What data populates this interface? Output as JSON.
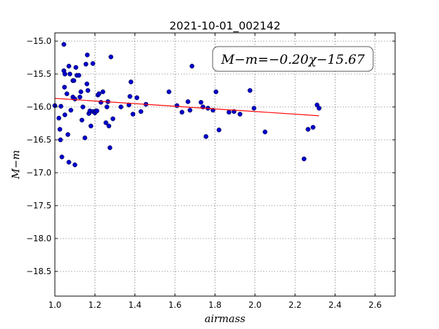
{
  "chart_data": {
    "type": "scatter",
    "title": "2021-10-01_002142",
    "xlabel": "airmass",
    "ylabel": "M−m",
    "xlim": [
      1.0,
      2.7
    ],
    "ylim": [
      -18.875,
      -14.875
    ],
    "y_inverted": true,
    "grid": true,
    "x_ticks": [
      1.0,
      1.2,
      1.4,
      1.6,
      1.8,
      2.0,
      2.2,
      2.4,
      2.6
    ],
    "x_tick_labels": [
      "1.0",
      "1.2",
      "1.4",
      "1.6",
      "1.8",
      "2.0",
      "2.2",
      "2.4",
      "2.6"
    ],
    "y_ticks": [
      -15.0,
      -15.5,
      -16.0,
      -16.5,
      -17.0,
      -17.5,
      -18.0,
      -18.5
    ],
    "y_tick_labels": [
      "−15.0",
      "−15.5",
      "−16.0",
      "−16.5",
      "−17.0",
      "−17.5",
      "−18.0",
      "−18.5"
    ],
    "annotation": "M−m=−0.20χ−15.67",
    "annotation_placement": "top-right",
    "marker_color": "#0000cc",
    "fit_color": "#ff0000",
    "fit": {
      "slope": -0.2,
      "intercept": -15.67,
      "x_range": [
        1.0,
        2.32
      ]
    },
    "series": [
      {
        "points": [
          [
            1.0,
            -15.98
          ],
          [
            1.02,
            -16.17
          ],
          [
            1.025,
            -16.34
          ],
          [
            1.028,
            -16.5
          ],
          [
            1.03,
            -15.99
          ],
          [
            1.035,
            -16.76
          ],
          [
            1.045,
            -15.05
          ],
          [
            1.045,
            -15.45
          ],
          [
            1.048,
            -15.7
          ],
          [
            1.05,
            -15.5
          ],
          [
            1.05,
            -16.12
          ],
          [
            1.06,
            -15.8
          ],
          [
            1.065,
            -16.42
          ],
          [
            1.07,
            -15.38
          ],
          [
            1.07,
            -16.84
          ],
          [
            1.075,
            -15.5
          ],
          [
            1.08,
            -16.05
          ],
          [
            1.09,
            -15.6
          ],
          [
            1.09,
            -15.85
          ],
          [
            1.095,
            -15.6
          ],
          [
            1.1,
            -15.88
          ],
          [
            1.1,
            -16.88
          ],
          [
            1.105,
            -15.4
          ],
          [
            1.11,
            -15.52
          ],
          [
            1.12,
            -15.52
          ],
          [
            1.125,
            -15.85
          ],
          [
            1.13,
            -15.77
          ],
          [
            1.135,
            -16.2
          ],
          [
            1.14,
            -16.0
          ],
          [
            1.15,
            -16.47
          ],
          [
            1.155,
            -15.35
          ],
          [
            1.16,
            -15.65
          ],
          [
            1.162,
            -15.21
          ],
          [
            1.165,
            -15.75
          ],
          [
            1.17,
            -16.1
          ],
          [
            1.175,
            -16.06
          ],
          [
            1.18,
            -16.29
          ],
          [
            1.19,
            -15.34
          ],
          [
            1.19,
            -16.07
          ],
          [
            1.2,
            -16.09
          ],
          [
            1.205,
            -16.06
          ],
          [
            1.21,
            -16.06
          ],
          [
            1.215,
            -15.82
          ],
          [
            1.22,
            -15.8
          ],
          [
            1.23,
            -15.93
          ],
          [
            1.24,
            -15.77
          ],
          [
            1.255,
            -16.24
          ],
          [
            1.26,
            -16.0
          ],
          [
            1.265,
            -15.92
          ],
          [
            1.27,
            -16.29
          ],
          [
            1.275,
            -16.62
          ],
          [
            1.28,
            -15.24
          ],
          [
            1.29,
            -16.18
          ],
          [
            1.33,
            -16.0
          ],
          [
            1.37,
            -15.97
          ],
          [
            1.375,
            -15.84
          ],
          [
            1.38,
            -15.62
          ],
          [
            1.39,
            -16.11
          ],
          [
            1.41,
            -15.86
          ],
          [
            1.43,
            -16.07
          ],
          [
            1.455,
            -15.96
          ],
          [
            1.57,
            -15.77
          ],
          [
            1.61,
            -15.98
          ],
          [
            1.635,
            -16.08
          ],
          [
            1.665,
            -15.92
          ],
          [
            1.675,
            -16.05
          ],
          [
            1.685,
            -15.38
          ],
          [
            1.73,
            -15.93
          ],
          [
            1.74,
            -16.0
          ],
          [
            1.755,
            -16.45
          ],
          [
            1.765,
            -16.02
          ],
          [
            1.79,
            -16.05
          ],
          [
            1.805,
            -15.77
          ],
          [
            1.82,
            -16.35
          ],
          [
            1.87,
            -16.08
          ],
          [
            1.895,
            -16.07
          ],
          [
            1.925,
            -16.11
          ],
          [
            1.975,
            -15.75
          ],
          [
            1.995,
            -16.02
          ],
          [
            2.05,
            -16.38
          ],
          [
            2.245,
            -16.79
          ],
          [
            2.265,
            -16.34
          ],
          [
            2.29,
            -16.31
          ],
          [
            2.31,
            -15.97
          ],
          [
            2.32,
            -16.02
          ]
        ]
      }
    ]
  }
}
